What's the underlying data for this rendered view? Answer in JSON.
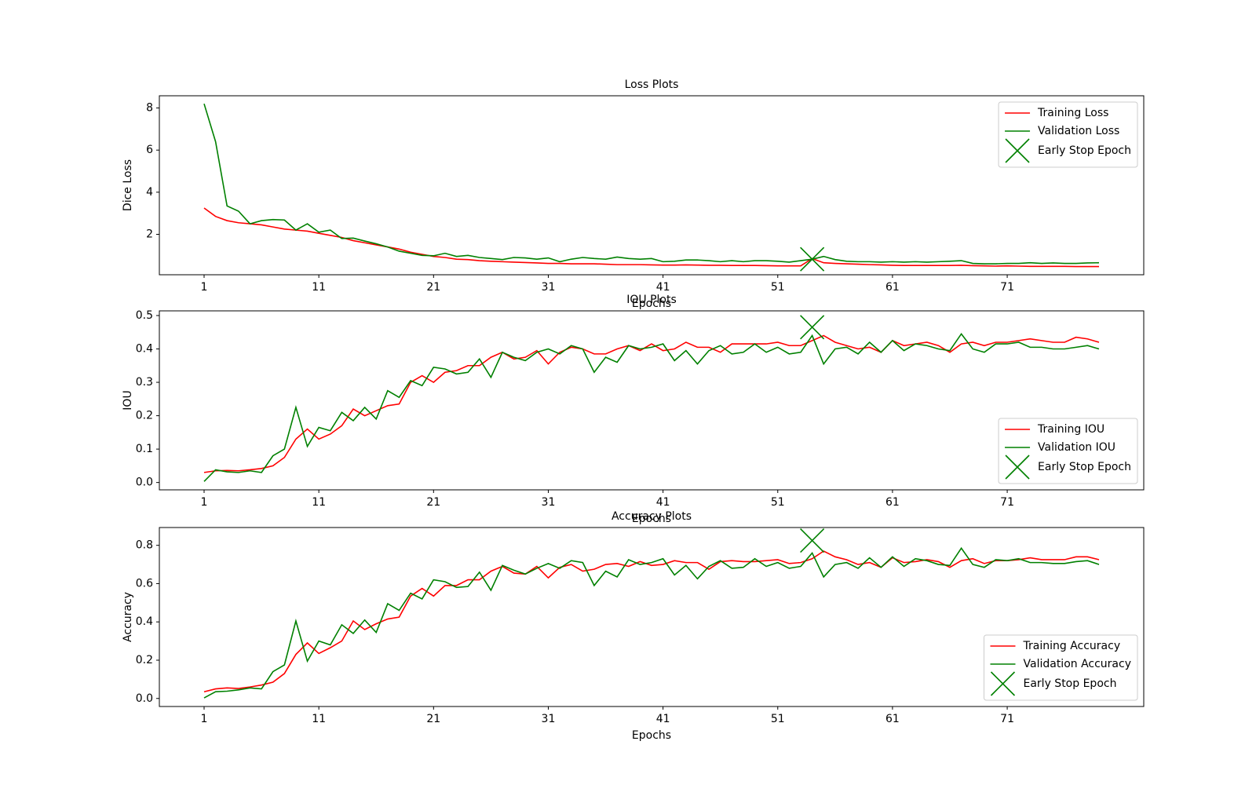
{
  "chart_data": [
    {
      "type": "line",
      "title": "Loss Plots",
      "xlabel": "Epochs",
      "ylabel": "Dice Loss",
      "x": [
        1,
        2,
        3,
        4,
        5,
        6,
        7,
        8,
        9,
        10,
        11,
        12,
        13,
        14,
        15,
        16,
        17,
        18,
        19,
        20,
        21,
        22,
        23,
        24,
        25,
        26,
        27,
        28,
        29,
        30,
        31,
        32,
        33,
        34,
        35,
        36,
        37,
        38,
        39,
        40,
        41,
        42,
        43,
        44,
        45,
        46,
        47,
        48,
        49,
        50,
        51,
        52,
        53,
        54,
        55,
        56,
        57,
        58,
        59,
        60,
        61,
        62,
        63,
        64,
        65,
        66,
        67,
        68,
        69,
        70,
        71,
        72,
        73,
        74,
        75,
        76,
        77,
        78,
        79
      ],
      "xlim": [
        -2.9,
        82.9
      ],
      "xticks": [
        1,
        11,
        21,
        31,
        41,
        51,
        61,
        71
      ],
      "ylim": [
        0.08,
        8.58
      ],
      "yticks": [
        2,
        4,
        6,
        8
      ],
      "legend": "upper right",
      "series": [
        {
          "name": "Training Loss",
          "color": "red",
          "values": [
            3.25,
            2.85,
            2.65,
            2.55,
            2.5,
            2.45,
            2.35,
            2.25,
            2.2,
            2.15,
            2.05,
            1.95,
            1.85,
            1.7,
            1.6,
            1.5,
            1.4,
            1.3,
            1.15,
            1.05,
            0.95,
            0.9,
            0.82,
            0.8,
            0.75,
            0.72,
            0.7,
            0.68,
            0.66,
            0.64,
            0.62,
            0.62,
            0.6,
            0.6,
            0.6,
            0.58,
            0.56,
            0.56,
            0.56,
            0.55,
            0.54,
            0.54,
            0.55,
            0.54,
            0.53,
            0.53,
            0.52,
            0.52,
            0.52,
            0.51,
            0.5,
            0.5,
            0.5,
            0.85,
            0.65,
            0.62,
            0.6,
            0.58,
            0.56,
            0.55,
            0.53,
            0.52,
            0.52,
            0.52,
            0.52,
            0.52,
            0.53,
            0.51,
            0.5,
            0.49,
            0.5,
            0.49,
            0.48,
            0.48,
            0.48,
            0.48,
            0.47,
            0.47,
            0.47
          ]
        },
        {
          "name": "Validation Loss",
          "color": "green",
          "values": [
            8.2,
            6.4,
            3.35,
            3.1,
            2.5,
            2.65,
            2.7,
            2.68,
            2.2,
            2.5,
            2.1,
            2.2,
            1.8,
            1.82,
            1.68,
            1.55,
            1.4,
            1.2,
            1.1,
            1.0,
            0.98,
            1.1,
            0.95,
            1.0,
            0.9,
            0.85,
            0.8,
            0.9,
            0.88,
            0.82,
            0.88,
            0.7,
            0.82,
            0.9,
            0.85,
            0.82,
            0.92,
            0.85,
            0.82,
            0.85,
            0.7,
            0.72,
            0.78,
            0.78,
            0.75,
            0.7,
            0.75,
            0.7,
            0.75,
            0.75,
            0.72,
            0.68,
            0.75,
            0.82,
            0.95,
            0.8,
            0.72,
            0.7,
            0.7,
            0.68,
            0.7,
            0.68,
            0.7,
            0.68,
            0.7,
            0.72,
            0.75,
            0.62,
            0.6,
            0.6,
            0.62,
            0.62,
            0.65,
            0.62,
            0.64,
            0.62,
            0.62,
            0.64,
            0.65
          ]
        }
      ],
      "early_stop": {
        "name": "Early Stop Epoch",
        "color": "green",
        "x": 54,
        "y": 0.82
      }
    },
    {
      "type": "line",
      "title": "IOU Plots",
      "xlabel": "Epochs",
      "ylabel": "IOU",
      "x": [
        1,
        2,
        3,
        4,
        5,
        6,
        7,
        8,
        9,
        10,
        11,
        12,
        13,
        14,
        15,
        16,
        17,
        18,
        19,
        20,
        21,
        22,
        23,
        24,
        25,
        26,
        27,
        28,
        29,
        30,
        31,
        32,
        33,
        34,
        35,
        36,
        37,
        38,
        39,
        40,
        41,
        42,
        43,
        44,
        45,
        46,
        47,
        48,
        49,
        50,
        51,
        52,
        53,
        54,
        55,
        56,
        57,
        58,
        59,
        60,
        61,
        62,
        63,
        64,
        65,
        66,
        67,
        68,
        69,
        70,
        71,
        72,
        73,
        74,
        75,
        76,
        77,
        78,
        79
      ],
      "xlim": [
        -2.9,
        82.9
      ],
      "xticks": [
        1,
        11,
        21,
        31,
        41,
        51,
        61,
        71
      ],
      "ylim": [
        -0.022,
        0.514
      ],
      "yticks": [
        {
          "value": 0,
          "label": "0.0"
        },
        0.1,
        0.2,
        0.3,
        0.4,
        0.5
      ],
      "legend": "lower right",
      "series": [
        {
          "name": "Training IOU",
          "color": "red",
          "values": [
            0.03,
            0.035,
            0.036,
            0.035,
            0.038,
            0.042,
            0.05,
            0.075,
            0.13,
            0.16,
            0.13,
            0.145,
            0.17,
            0.22,
            0.2,
            0.215,
            0.23,
            0.235,
            0.3,
            0.32,
            0.3,
            0.33,
            0.335,
            0.35,
            0.35,
            0.375,
            0.39,
            0.37,
            0.375,
            0.395,
            0.355,
            0.39,
            0.405,
            0.4,
            0.385,
            0.385,
            0.4,
            0.41,
            0.395,
            0.415,
            0.395,
            0.4,
            0.42,
            0.405,
            0.405,
            0.39,
            0.415,
            0.415,
            0.415,
            0.415,
            0.42,
            0.41,
            0.41,
            0.425,
            0.44,
            0.42,
            0.41,
            0.4,
            0.405,
            0.39,
            0.425,
            0.41,
            0.415,
            0.42,
            0.41,
            0.39,
            0.415,
            0.42,
            0.41,
            0.42,
            0.42,
            0.425,
            0.43,
            0.425,
            0.42,
            0.42,
            0.435,
            0.43,
            0.42
          ]
        },
        {
          "name": "Validation IOU",
          "color": "green",
          "values": [
            0.003,
            0.038,
            0.032,
            0.03,
            0.035,
            0.03,
            0.08,
            0.1,
            0.225,
            0.108,
            0.165,
            0.155,
            0.21,
            0.185,
            0.225,
            0.19,
            0.275,
            0.255,
            0.305,
            0.29,
            0.345,
            0.34,
            0.325,
            0.33,
            0.37,
            0.315,
            0.39,
            0.375,
            0.365,
            0.39,
            0.4,
            0.385,
            0.41,
            0.4,
            0.33,
            0.375,
            0.36,
            0.41,
            0.4,
            0.405,
            0.415,
            0.365,
            0.395,
            0.355,
            0.395,
            0.41,
            0.385,
            0.39,
            0.415,
            0.39,
            0.405,
            0.385,
            0.39,
            0.44,
            0.355,
            0.4,
            0.405,
            0.385,
            0.42,
            0.39,
            0.425,
            0.395,
            0.415,
            0.41,
            0.4,
            0.395,
            0.445,
            0.4,
            0.39,
            0.415,
            0.415,
            0.42,
            0.405,
            0.405,
            0.4,
            0.4,
            0.405,
            0.41,
            0.4
          ]
        }
      ],
      "early_stop": {
        "name": "Early Stop Epoch",
        "color": "green",
        "x": 54,
        "y": 0.465
      }
    },
    {
      "type": "line",
      "title": "Accuracy Plots",
      "xlabel": "Epochs",
      "ylabel": "Accuracy",
      "x": [
        1,
        2,
        3,
        4,
        5,
        6,
        7,
        8,
        9,
        10,
        11,
        12,
        13,
        14,
        15,
        16,
        17,
        18,
        19,
        20,
        21,
        22,
        23,
        24,
        25,
        26,
        27,
        28,
        29,
        30,
        31,
        32,
        33,
        34,
        35,
        36,
        37,
        38,
        39,
        40,
        41,
        42,
        43,
        44,
        45,
        46,
        47,
        48,
        49,
        50,
        51,
        52,
        53,
        54,
        55,
        56,
        57,
        58,
        59,
        60,
        61,
        62,
        63,
        64,
        65,
        66,
        67,
        68,
        69,
        70,
        71,
        72,
        73,
        74,
        75,
        76,
        77,
        78,
        79
      ],
      "xlim": [
        -2.9,
        82.9
      ],
      "xticks": [
        1,
        11,
        21,
        31,
        41,
        51,
        61,
        71
      ],
      "ylim": [
        -0.042,
        0.893
      ],
      "yticks": [
        {
          "value": 0,
          "label": "0.0"
        },
        0.2,
        0.4,
        0.6,
        0.8
      ],
      "legend": "lower right",
      "series": [
        {
          "name": "Training Accuracy",
          "color": "red",
          "values": [
            0.035,
            0.05,
            0.055,
            0.052,
            0.06,
            0.07,
            0.085,
            0.13,
            0.23,
            0.29,
            0.235,
            0.265,
            0.3,
            0.405,
            0.36,
            0.39,
            0.415,
            0.425,
            0.535,
            0.575,
            0.535,
            0.59,
            0.59,
            0.62,
            0.62,
            0.665,
            0.69,
            0.655,
            0.65,
            0.69,
            0.63,
            0.685,
            0.7,
            0.665,
            0.675,
            0.7,
            0.705,
            0.69,
            0.715,
            0.695,
            0.7,
            0.72,
            0.71,
            0.71,
            0.675,
            0.715,
            0.72,
            0.715,
            0.715,
            0.72,
            0.725,
            0.705,
            0.71,
            0.73,
            0.77,
            0.74,
            0.725,
            0.7,
            0.71,
            0.685,
            0.735,
            0.71,
            0.715,
            0.725,
            0.715,
            0.685,
            0.72,
            0.73,
            0.705,
            0.72,
            0.72,
            0.725,
            0.735,
            0.725,
            0.725,
            0.725,
            0.74,
            0.74,
            0.725
          ]
        },
        {
          "name": "Validation Accuracy",
          "color": "green",
          "values": [
            0.003,
            0.035,
            0.038,
            0.045,
            0.055,
            0.05,
            0.14,
            0.175,
            0.405,
            0.195,
            0.3,
            0.28,
            0.385,
            0.34,
            0.41,
            0.345,
            0.495,
            0.46,
            0.55,
            0.52,
            0.62,
            0.61,
            0.58,
            0.585,
            0.66,
            0.565,
            0.695,
            0.67,
            0.65,
            0.68,
            0.705,
            0.68,
            0.72,
            0.71,
            0.59,
            0.665,
            0.635,
            0.725,
            0.7,
            0.71,
            0.73,
            0.645,
            0.695,
            0.625,
            0.69,
            0.72,
            0.68,
            0.685,
            0.73,
            0.69,
            0.71,
            0.68,
            0.69,
            0.76,
            0.635,
            0.7,
            0.71,
            0.68,
            0.735,
            0.685,
            0.74,
            0.69,
            0.73,
            0.72,
            0.7,
            0.695,
            0.785,
            0.7,
            0.685,
            0.725,
            0.72,
            0.73,
            0.71,
            0.71,
            0.705,
            0.705,
            0.715,
            0.72,
            0.7
          ]
        }
      ],
      "early_stop": {
        "name": "Early Stop Epoch",
        "color": "green",
        "x": 54,
        "y": 0.825
      }
    }
  ]
}
